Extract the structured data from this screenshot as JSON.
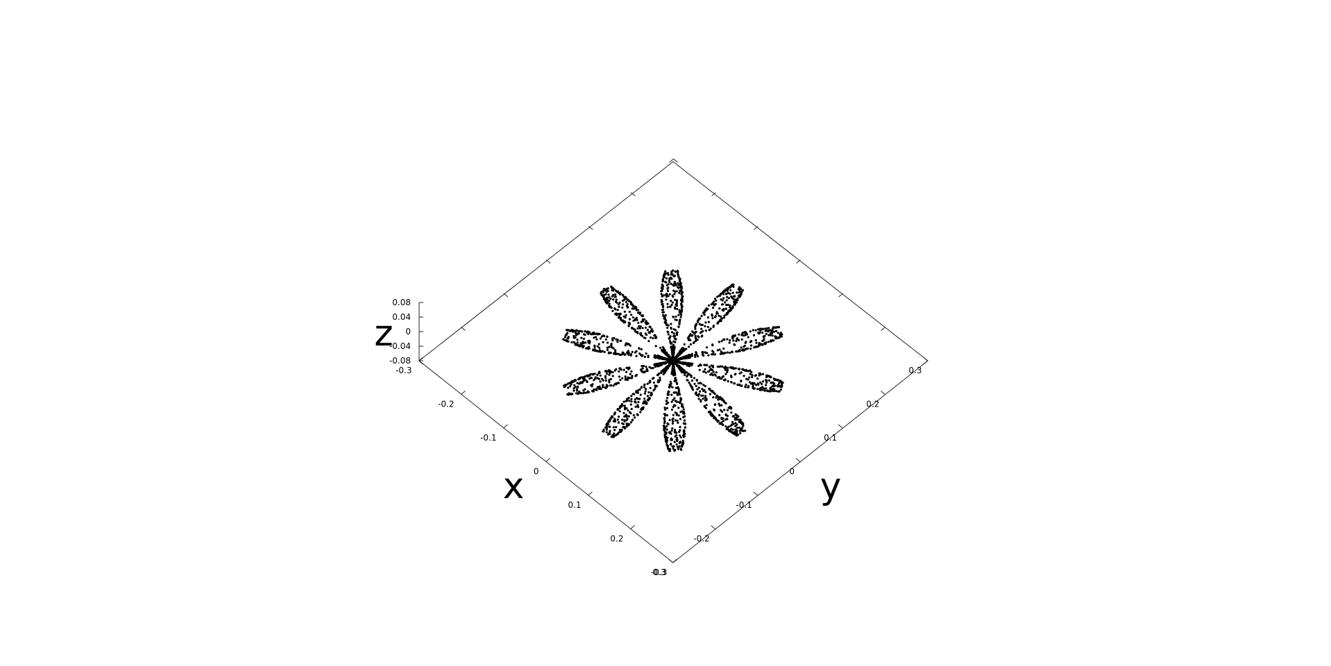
{
  "chart_data": {
    "type": "scatter",
    "projection": "3d-top-down-rotated",
    "xlabel": "x",
    "ylabel": "y",
    "zlabel": "z",
    "xlim": [
      -0.3,
      0.3
    ],
    "ylim": [
      -0.3,
      0.3
    ],
    "zlim": [
      -0.08,
      0.08
    ],
    "x_ticks": [
      "-0.3",
      "-0.2",
      "-0.1",
      "0",
      "0.1",
      "0.2",
      "0.3"
    ],
    "y_ticks": [
      "-0.3",
      "-0.2",
      "-0.1",
      "0",
      "0.1",
      "0.2",
      "0.3"
    ],
    "z_ticks": [
      "0.08",
      "0.04",
      "0",
      "-0.04",
      "-0.08"
    ],
    "grid": false,
    "marker_color": "#000000",
    "series": [
      {
        "shape": "ten-petal flower (rose curve) centered at origin",
        "petals": 10,
        "petal_tip_radius": 0.19,
        "petal_angular_halfwidth_deg": 9,
        "approx_points": 3000
      }
    ]
  }
}
